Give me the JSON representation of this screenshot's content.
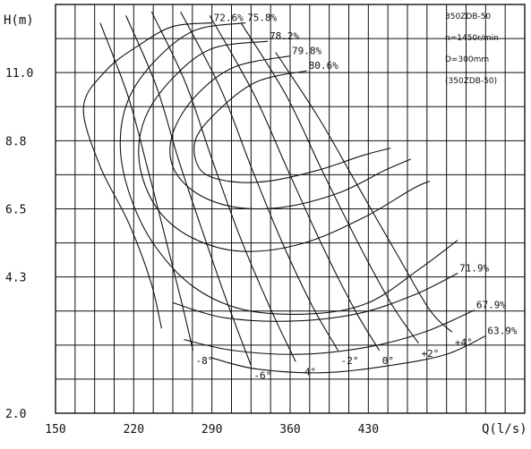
{
  "chart_data": {
    "type": "line",
    "title": "",
    "xlabel": "Q(l/s)",
    "ylabel": "H(m)",
    "xlim": [
      150,
      570
    ],
    "ylim": [
      2.0,
      13.1
    ],
    "x_ticks": [
      "150",
      "220",
      "290",
      "360",
      "430"
    ],
    "y_ticks": [
      "11.0",
      "8.8",
      "6.5",
      "4.3",
      "2.0"
    ],
    "info_box": [
      "350ZDB-50",
      "n=1450r/min",
      "D=300mm",
      "(350ZDB-50)"
    ],
    "series": [
      {
        "name": "-8°",
        "values": [
          [
            190,
            12.6
          ],
          [
            215,
            10.6
          ],
          [
            232,
            8.7
          ],
          [
            248,
            6.8
          ],
          [
            263,
            5.0
          ],
          [
            273,
            3.7
          ]
        ]
      },
      {
        "name": "-6°",
        "values": [
          [
            213,
            12.8
          ],
          [
            240,
            10.9
          ],
          [
            260,
            8.9
          ],
          [
            282,
            6.9
          ],
          [
            305,
            4.9
          ],
          [
            325,
            3.3
          ]
        ]
      },
      {
        "name": "-4°",
        "values": [
          [
            236,
            12.9
          ],
          [
            266,
            11.0
          ],
          [
            290,
            8.9
          ],
          [
            315,
            6.8
          ],
          [
            343,
            4.8
          ],
          [
            365,
            3.4
          ]
        ]
      },
      {
        "name": "-2°",
        "values": [
          [
            262,
            12.9
          ],
          [
            298,
            10.8
          ],
          [
            325,
            8.7
          ],
          [
            352,
            6.7
          ],
          [
            380,
            4.9
          ],
          [
            403,
            3.7
          ]
        ]
      },
      {
        "name": "0°",
        "values": [
          [
            288,
            12.8
          ],
          [
            327,
            10.7
          ],
          [
            358,
            8.6
          ],
          [
            388,
            6.6
          ],
          [
            418,
            4.8
          ],
          [
            440,
            3.7
          ]
        ]
      },
      {
        "name": "+2°",
        "values": [
          [
            316,
            12.6
          ],
          [
            357,
            10.6
          ],
          [
            390,
            8.5
          ],
          [
            423,
            6.5
          ],
          [
            452,
            4.9
          ],
          [
            475,
            3.9
          ]
        ]
      },
      {
        "name": "+4°",
        "values": [
          [
            347,
            11.8
          ],
          [
            386,
            10.0
          ],
          [
            420,
            8.2
          ],
          [
            456,
            6.3
          ],
          [
            485,
            4.8
          ],
          [
            505,
            4.2
          ]
        ]
      }
    ],
    "efficiency_series": [
      {
        "name": "72.6%",
        "values": [
          [
            290,
            12.6
          ],
          [
            255,
            12.5
          ],
          [
            225,
            12.0
          ],
          [
            195,
            11.3
          ],
          [
            175,
            10.3
          ],
          [
            190,
            8.7
          ],
          [
            215,
            7.2
          ],
          [
            235,
            5.6
          ],
          [
            245,
            4.3
          ]
        ]
      },
      {
        "name": "75.8%",
        "values": [
          [
            320,
            12.6
          ],
          [
            275,
            12.4
          ],
          [
            240,
            11.6
          ],
          [
            215,
            10.5
          ],
          [
            208,
            9.2
          ],
          [
            218,
            7.8
          ],
          [
            240,
            6.5
          ],
          [
            275,
            5.4
          ],
          [
            320,
            4.8
          ],
          [
            380,
            4.7
          ],
          [
            430,
            5.0
          ],
          [
            475,
            5.9
          ],
          [
            510,
            6.7
          ]
        ]
      },
      {
        "name": "78.2%",
        "values": [
          [
            340,
            12.1
          ],
          [
            290,
            11.9
          ],
          [
            255,
            11.1
          ],
          [
            230,
            10.0
          ],
          [
            225,
            8.8
          ],
          [
            240,
            7.6
          ],
          [
            270,
            6.8
          ],
          [
            315,
            6.4
          ],
          [
            370,
            6.6
          ],
          [
            425,
            7.3
          ],
          [
            470,
            8.1
          ],
          [
            485,
            8.3
          ]
        ]
      },
      {
        "name": "79.8%",
        "values": [
          [
            360,
            11.7
          ],
          [
            310,
            11.4
          ],
          [
            275,
            10.6
          ],
          [
            255,
            9.6
          ],
          [
            255,
            8.7
          ],
          [
            275,
            8.0
          ],
          [
            310,
            7.6
          ],
          [
            355,
            7.6
          ],
          [
            405,
            8.0
          ],
          [
            445,
            8.6
          ],
          [
            468,
            8.9
          ]
        ]
      },
      {
        "name": "80.6%",
        "values": [
          [
            375,
            11.3
          ],
          [
            330,
            11.0
          ],
          [
            295,
            10.2
          ],
          [
            275,
            9.4
          ],
          [
            280,
            8.6
          ],
          [
            305,
            8.3
          ],
          [
            340,
            8.3
          ],
          [
            385,
            8.6
          ],
          [
            425,
            9.0
          ],
          [
            450,
            9.2
          ]
        ]
      },
      {
        "name": "71.9%",
        "values": [
          [
            510,
            5.8
          ],
          [
            470,
            5.2
          ],
          [
            420,
            4.7
          ],
          [
            360,
            4.5
          ],
          [
            300,
            4.6
          ],
          [
            255,
            5.0
          ]
        ]
      },
      {
        "name": "67.9%",
        "values": [
          [
            525,
            4.8
          ],
          [
            480,
            4.2
          ],
          [
            430,
            3.8
          ],
          [
            370,
            3.6
          ],
          [
            310,
            3.7
          ],
          [
            265,
            4.0
          ]
        ]
      },
      {
        "name": "63.9%",
        "values": [
          [
            535,
            4.1
          ],
          [
            500,
            3.6
          ],
          [
            450,
            3.3
          ],
          [
            390,
            3.1
          ],
          [
            330,
            3.2
          ],
          [
            290,
            3.5
          ]
        ]
      }
    ]
  }
}
